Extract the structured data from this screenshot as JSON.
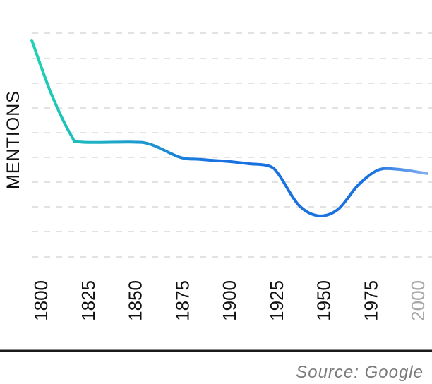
{
  "chart_data": {
    "type": "line",
    "title": "",
    "xlabel": "",
    "ylabel": "MENTIONS",
    "x": [
      1800,
      1810,
      1820,
      1825,
      1850,
      1860,
      1875,
      1885,
      1900,
      1910,
      1920,
      1925,
      1935,
      1945,
      1955,
      1965,
      1975,
      1985,
      2000
    ],
    "y": [
      100,
      75,
      56,
      53,
      53,
      52,
      46,
      45,
      44,
      43,
      42,
      38,
      24,
      19,
      22,
      33,
      40,
      40.5,
      38.5
    ],
    "xticks": [
      "1800",
      "1825",
      "1850",
      "1875",
      "1900",
      "1925",
      "1950",
      "1975",
      "2000"
    ],
    "projected_from": 1985,
    "ylim": [
      0,
      105
    ],
    "xlim": [
      1800,
      2002
    ],
    "grid": true,
    "colors": {
      "line_start": "#1fd3b3",
      "line_end": "#1a72e0",
      "projected": "#8fb6f2",
      "future_tick": "#a8a8a8"
    }
  },
  "source": "Source: Google"
}
